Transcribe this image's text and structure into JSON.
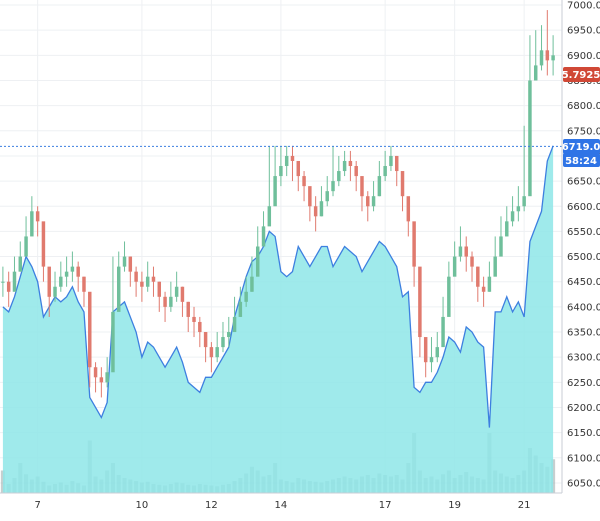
{
  "chart_data": {
    "type": "line",
    "title": "",
    "xlabel": "",
    "ylabel": "",
    "ylim": [
      6030,
      7010
    ],
    "x_ticks": [
      {
        "label": "7",
        "index": 6
      },
      {
        "label": "10",
        "index": 24
      },
      {
        "label": "12",
        "index": 36
      },
      {
        "label": "14",
        "index": 48
      },
      {
        "label": "17",
        "index": 66
      },
      {
        "label": "19",
        "index": 78
      },
      {
        "label": "21",
        "index": 90
      }
    ],
    "y_ticks": [
      6050,
      6100,
      6150,
      6200,
      6250,
      6300,
      6350,
      6400,
      6450,
      6500,
      6550,
      6600,
      6650,
      6700,
      6750,
      6800,
      6850,
      6900,
      6950,
      7000
    ],
    "y_tick_labels": [
      "6050.0",
      "6100.0",
      "6150.0",
      "6200.0",
      "6250.0",
      "6300.0",
      "6350.0",
      "6400.0",
      "6450.0",
      "6500.0",
      "6550.0",
      "6600.0",
      "6650.0",
      "6700.0",
      "6750.0",
      "6800.0",
      "6850.0",
      "6900.0",
      "6950.0",
      "7000.0"
    ],
    "series": [
      {
        "kind": "candlestick",
        "up_color": "#6fbf9b",
        "down_color": "#e07a6e",
        "close": [
          6450,
          6430,
          6470,
          6500,
          6540,
          6590,
          6570,
          6480,
          6420,
          6440,
          6460,
          6470,
          6480,
          6460,
          6430,
          6280,
          6260,
          6250,
          6270,
          6390,
          6480,
          6500,
          6470,
          6450,
          6440,
          6460,
          6450,
          6420,
          6400,
          6420,
          6440,
          6410,
          6380,
          6370,
          6350,
          6320,
          6300,
          6320,
          6340,
          6350,
          6380,
          6410,
          6430,
          6460,
          6520,
          6560,
          6600,
          6660,
          6680,
          6700,
          6690,
          6660,
          6640,
          6600,
          6580,
          6610,
          6630,
          6650,
          6670,
          6690,
          6680,
          6660,
          6620,
          6600,
          6620,
          6660,
          6680,
          6700,
          6670,
          6620,
          6570,
          6480,
          6340,
          6290,
          6300,
          6320,
          6380,
          6460,
          6500,
          6520,
          6500,
          6480,
          6440,
          6430,
          6460,
          6500,
          6540,
          6570,
          6590,
          6600,
          6620,
          6850,
          6880,
          6910,
          6890,
          6900
        ],
        "high": [
          6480,
          6470,
          6500,
          6530,
          6580,
          6620,
          6600,
          6510,
          6460,
          6470,
          6490,
          6500,
          6510,
          6490,
          6460,
          6300,
          6290,
          6280,
          6300,
          6500,
          6510,
          6530,
          6500,
          6480,
          6470,
          6490,
          6480,
          6450,
          6430,
          6450,
          6470,
          6440,
          6410,
          6400,
          6380,
          6350,
          6330,
          6350,
          6370,
          6380,
          6420,
          6440,
          6460,
          6500,
          6560,
          6590,
          6720,
          6720,
          6720,
          6720,
          6720,
          6690,
          6670,
          6630,
          6620,
          6640,
          6660,
          6720,
          6700,
          6710,
          6710,
          6690,
          6650,
          6630,
          6650,
          6690,
          6710,
          6720,
          6700,
          6650,
          6600,
          6510,
          6370,
          6330,
          6340,
          6350,
          6420,
          6490,
          6530,
          6560,
          6540,
          6510,
          6480,
          6460,
          6490,
          6540,
          6580,
          6600,
          6620,
          6640,
          6760,
          6940,
          6950,
          6960,
          6990,
          6940
        ],
        "low": [
          6420,
          6400,
          6440,
          6470,
          6510,
          6560,
          6540,
          6450,
          6380,
          6410,
          6430,
          6440,
          6450,
          6430,
          6400,
          6240,
          6230,
          6220,
          6240,
          6370,
          6450,
          6470,
          6440,
          6420,
          6410,
          6430,
          6420,
          6390,
          6370,
          6390,
          6410,
          6380,
          6350,
          6340,
          6320,
          6290,
          6270,
          6290,
          6310,
          6320,
          6350,
          6380,
          6400,
          6430,
          6490,
          6530,
          6570,
          6620,
          6640,
          6660,
          6650,
          6630,
          6610,
          6570,
          6550,
          6580,
          6600,
          6620,
          6640,
          6660,
          6650,
          6630,
          6590,
          6570,
          6590,
          6620,
          6650,
          6670,
          6640,
          6590,
          6540,
          6440,
          6300,
          6260,
          6270,
          6290,
          6340,
          6430,
          6470,
          6490,
          6470,
          6450,
          6410,
          6400,
          6430,
          6470,
          6510,
          6540,
          6560,
          6570,
          6590,
          6820,
          6850,
          6870,
          6860,
          6860
        ]
      },
      {
        "kind": "area",
        "line_color": "#3d7fe0",
        "fill_color": "#8ee6e8",
        "values": [
          6400,
          6390,
          6420,
          6460,
          6500,
          6480,
          6450,
          6380,
          6400,
          6420,
          6410,
          6420,
          6440,
          6410,
          6390,
          6220,
          6200,
          6180,
          6210,
          6390,
          6400,
          6410,
          6380,
          6350,
          6300,
          6330,
          6320,
          6300,
          6280,
          6300,
          6320,
          6290,
          6250,
          6240,
          6230,
          6260,
          6260,
          6280,
          6300,
          6320,
          6380,
          6420,
          6460,
          6490,
          6500,
          6520,
          6550,
          6540,
          6470,
          6460,
          6470,
          6520,
          6500,
          6480,
          6500,
          6520,
          6520,
          6480,
          6500,
          6520,
          6510,
          6500,
          6470,
          6490,
          6510,
          6530,
          6520,
          6500,
          6480,
          6420,
          6430,
          6240,
          6230,
          6250,
          6250,
          6270,
          6300,
          6340,
          6330,
          6310,
          6360,
          6350,
          6330,
          6320,
          6160,
          6390,
          6390,
          6420,
          6390,
          6410,
          6380,
          6530,
          6560,
          6590,
          6690,
          6720
        ]
      },
      {
        "kind": "volume",
        "color": "#99a8a8",
        "values": [
          30,
          12,
          20,
          40,
          25,
          18,
          22,
          15,
          10,
          12,
          14,
          11,
          16,
          13,
          10,
          70,
          22,
          18,
          30,
          40,
          24,
          20,
          18,
          16,
          14,
          15,
          12,
          11,
          10,
          12,
          14,
          13,
          11,
          10,
          12,
          11,
          10,
          9,
          11,
          12,
          16,
          20,
          26,
          35,
          30,
          22,
          24,
          40,
          18,
          16,
          14,
          20,
          18,
          16,
          15,
          14,
          16,
          18,
          20,
          22,
          20,
          18,
          22,
          24,
          20,
          26,
          24,
          22,
          24,
          18,
          40,
          80,
          30,
          20,
          22,
          18,
          25,
          30,
          20,
          24,
          28,
          22,
          20,
          18,
          80,
          30,
          26,
          22,
          20,
          24,
          30,
          60,
          50,
          40,
          35,
          45
        ]
      }
    ],
    "current_price": "6719.0",
    "countdown": "58:24",
    "secondary_value": "5.7925",
    "markers": {
      "price_label_bg": "#2f74e6",
      "secondary_label_bg": "#d04836",
      "grid_color": "#eef0f3",
      "price_line_color": "#3d7fe0"
    }
  }
}
